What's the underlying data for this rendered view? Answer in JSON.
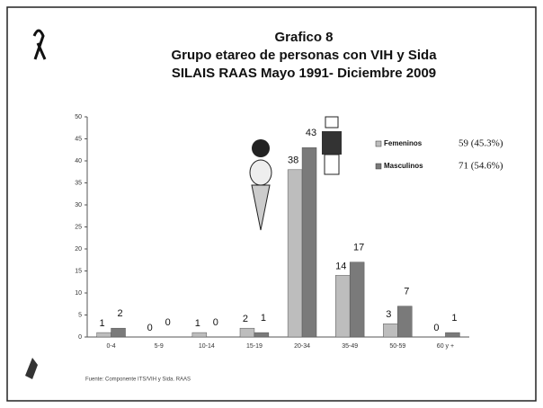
{
  "chart_data": {
    "type": "bar",
    "title": [
      "Grafico 8",
      "Grupo etareo de personas con VIH y Sida",
      "SILAIS RAAS Mayo 1991-  Diciembre 2009"
    ],
    "categories": [
      "0-4",
      "5-9",
      "10-14",
      "15-19",
      "20-34",
      "35-49",
      "50-59",
      "60 y +"
    ],
    "series": [
      {
        "name": "Femeninos",
        "note": "59 (45.3%)",
        "color": "#bdbdbd",
        "values": [
          1,
          0,
          1,
          2,
          38,
          14,
          3,
          0
        ]
      },
      {
        "name": "Masculinos",
        "note": "71 (54.6%)",
        "color": "#7a7a7a",
        "values": [
          2,
          0,
          0,
          1,
          43,
          17,
          7,
          1
        ]
      }
    ],
    "ylim": [
      0,
      50
    ],
    "yticks": [
      0,
      5,
      10,
      15,
      20,
      25,
      30,
      35,
      40,
      45,
      50
    ],
    "source": "Fuente: Componente  ITS/VIH y Sida. RAAS"
  }
}
